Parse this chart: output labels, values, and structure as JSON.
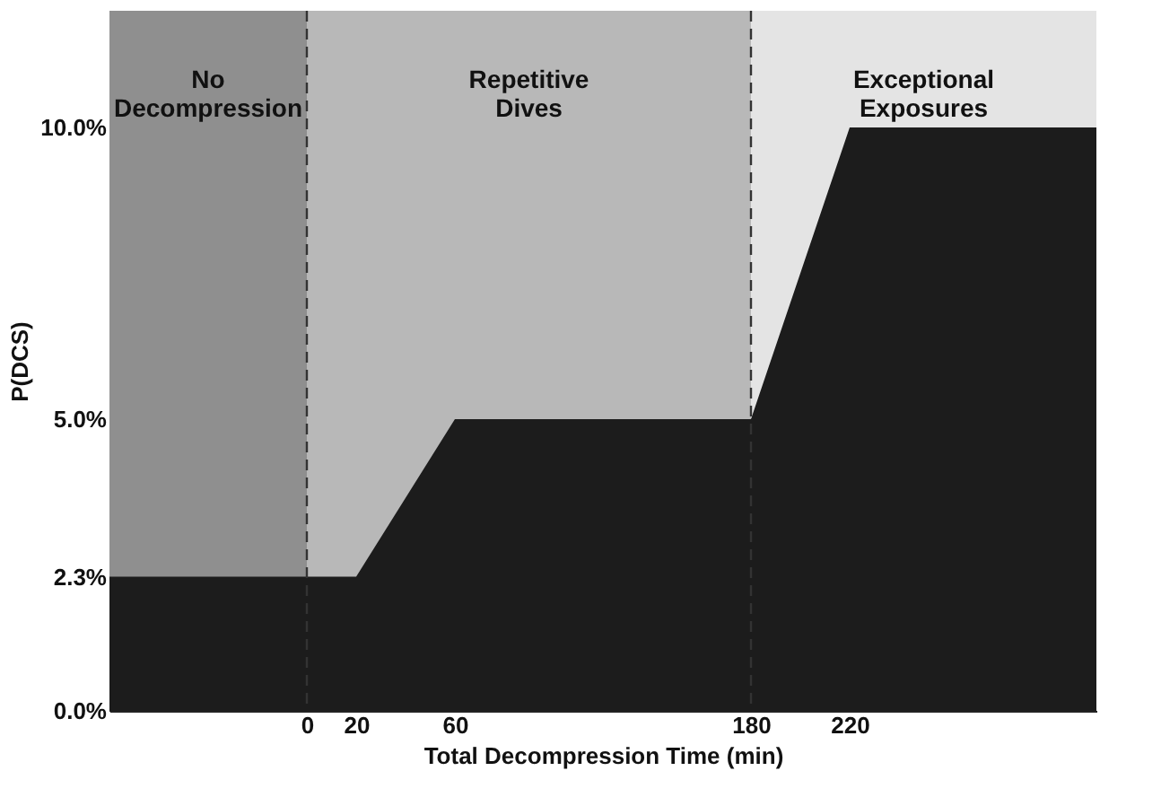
{
  "chart_data": {
    "type": "area",
    "xlabel": "Total Decompression Time (min)",
    "ylabel": "P(DCS)",
    "x": [
      -80,
      0,
      20,
      60,
      180,
      220,
      320
    ],
    "series": [
      {
        "color": "#1c1c1c",
        "values": [
          2.3,
          2.3,
          2.3,
          5.0,
          5.0,
          10.0,
          10.0
        ]
      }
    ],
    "xlim": [
      -80,
      320
    ],
    "xticks": [
      0,
      20,
      60,
      180,
      220
    ],
    "ylim": [
      0,
      12
    ],
    "yticks": [
      {
        "value": 0,
        "label": "0.0%"
      },
      {
        "value": 2.3,
        "label": "2.3%"
      },
      {
        "value": 5,
        "label": "5.0%"
      },
      {
        "value": 10,
        "label": "10.0%"
      }
    ],
    "bands": [
      {
        "axis": "x",
        "from": -80,
        "to": 0,
        "label": "No Decompression",
        "color": "#8f8f8f"
      },
      {
        "axis": "x",
        "from": 0,
        "to": 180,
        "label": "Repetitive Dives",
        "color": "#b8b8b8"
      },
      {
        "axis": "x",
        "from": 180,
        "to": 320,
        "label": "Exceptional Exposures",
        "color": "#e4e4e4"
      }
    ],
    "ref_lines": [
      {
        "axis": "x",
        "value": 0,
        "line_style": "dashed",
        "color": "#333333"
      },
      {
        "axis": "x",
        "value": 180,
        "line_style": "dashed",
        "color": "#333333"
      }
    ],
    "grid": false
  }
}
